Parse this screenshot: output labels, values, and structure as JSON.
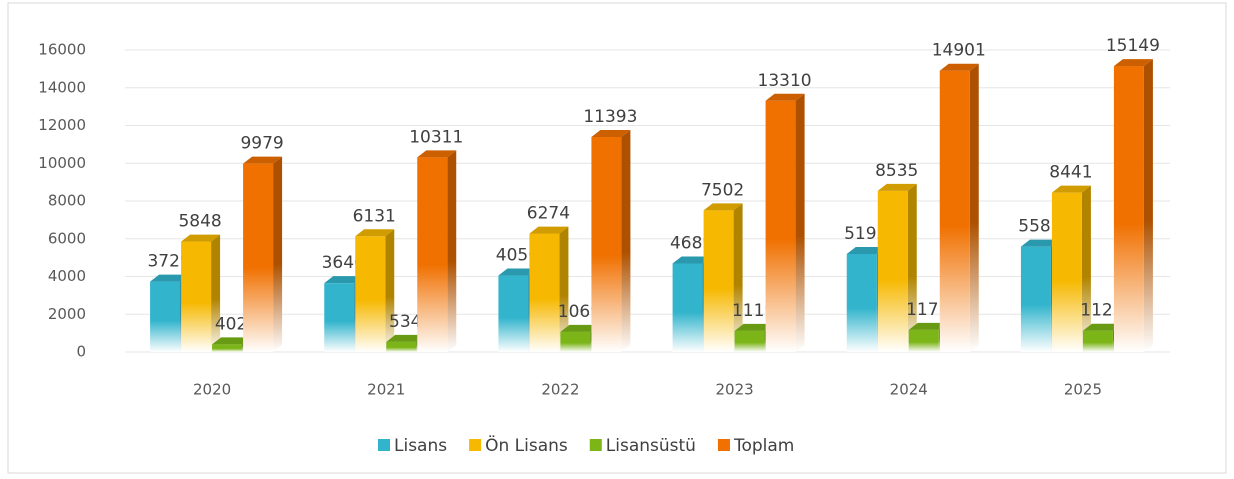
{
  "chart_data": {
    "type": "bar3d",
    "categories": [
      "2020",
      "2021",
      "2022",
      "2023",
      "2024",
      "2025"
    ],
    "series": [
      {
        "name": "Lisans",
        "color": "#31b4cc",
        "values": [
          3729,
          3646,
          4050,
          4689,
          5195,
          5581
        ]
      },
      {
        "name": "Ön Lisans",
        "color": "#f6b800",
        "values": [
          5848,
          6131,
          6274,
          7502,
          8535,
          8441
        ]
      },
      {
        "name": "Lisansüstü",
        "color": "#7cb518",
        "values": [
          402,
          534,
          1069,
          1119,
          1171,
          1127
        ]
      },
      {
        "name": "Toplam",
        "color": "#f07000",
        "values": [
          9979,
          10311,
          11393,
          13310,
          14901,
          15149
        ]
      }
    ],
    "ylim": [
      0,
      16000
    ],
    "yticks": [
      0,
      2000,
      4000,
      6000,
      8000,
      10000,
      12000,
      14000,
      16000
    ],
    "grid": true,
    "legend": "bottom"
  }
}
